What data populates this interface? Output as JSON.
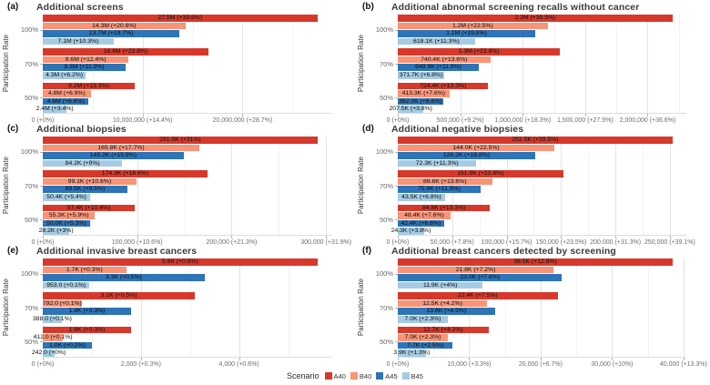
{
  "figure": {
    "y_axis_label": "Participation Rate",
    "participation_rates": [
      "100%",
      "70%",
      "50%"
    ],
    "legend": {
      "title": "Scenario",
      "items": [
        {
          "label": "A40",
          "color": "#d6392b"
        },
        {
          "label": "B40",
          "color": "#fa9476"
        },
        {
          "label": "A45",
          "color": "#2e74b6"
        },
        {
          "label": "B45",
          "color": "#a7cbe2"
        }
      ]
    },
    "colors": {
      "grid_major": "#e4e4e4",
      "grid_minor": "#f2f2f2",
      "axis_text": "#6e6e6e",
      "title_text": "#3d3d3d",
      "bar_label_text": "#0d0d0d"
    }
  },
  "chart_data": [
    {
      "type": "bar",
      "orientation": "horizontal",
      "panel_letter": "(a)",
      "title": "Additional screens",
      "ylabel": "Participation Rate",
      "x_max": 28900000,
      "x_ticks": [
        {
          "value": 0,
          "label": "0 (+0%)"
        },
        {
          "value": 10000000,
          "label": "10,000,000 (+14.4%)"
        },
        {
          "value": 20000000,
          "label": "20,000,000 (+28.7%)"
        }
      ],
      "groups": [
        {
          "rate": "100%",
          "bars": [
            {
              "scenario": "A40",
              "value": 27500000,
              "label": "27.5M (+39.6%)"
            },
            {
              "scenario": "B40",
              "value": 14300000,
              "label": "14.3M (+20.6%)"
            },
            {
              "scenario": "A45",
              "value": 13700000,
              "label": "13.7M (+19.7%)"
            },
            {
              "scenario": "B45",
              "value": 7100000,
              "label": "7.1M (+10.3%)"
            }
          ]
        },
        {
          "rate": "70%",
          "bars": [
            {
              "scenario": "A40",
              "value": 16600000,
              "label": "16.6M (+23.8%)"
            },
            {
              "scenario": "B40",
              "value": 8600000,
              "label": "8.6M (+12.4%)"
            },
            {
              "scenario": "A45",
              "value": 8300000,
              "label": "8.3M (+11.9%)"
            },
            {
              "scenario": "B45",
              "value": 4300000,
              "label": "4.3M (+6.2%)"
            }
          ]
        },
        {
          "rate": "50%",
          "bars": [
            {
              "scenario": "A40",
              "value": 9200000,
              "label": "9.2M (+13.3%)"
            },
            {
              "scenario": "B40",
              "value": 4800000,
              "label": "4.8M (+6.9%)"
            },
            {
              "scenario": "A45",
              "value": 4600000,
              "label": "4.6M (+6.6%)"
            },
            {
              "scenario": "B45",
              "value": 2400000,
              "label": "2.4M (+3.4%)"
            }
          ]
        }
      ]
    },
    {
      "type": "bar",
      "orientation": "horizontal",
      "panel_letter": "(b)",
      "title": "Additional abnormal screening recalls without cancer",
      "ylabel": "Participation Rate",
      "x_max": 2310000,
      "x_ticks": [
        {
          "value": 0,
          "label": "0 (+0%)"
        },
        {
          "value": 500000,
          "label": "500,000 (+9.2%)"
        },
        {
          "value": 1000000,
          "label": "1,000,000 (+18.3%)"
        },
        {
          "value": 1500000,
          "label": "1,500,000 (+27.5%)"
        },
        {
          "value": 2000000,
          "label": "2,000,000 (+36.6%)"
        }
      ],
      "groups": [
        {
          "rate": "100%",
          "bars": [
            {
              "scenario": "A40",
              "value": 2200000,
              "label": "2.2M (+39.5%)"
            },
            {
              "scenario": "B40",
              "value": 1200000,
              "label": "1.2M (+22.5%)"
            },
            {
              "scenario": "A45",
              "value": 1100000,
              "label": "1.1M (+19.8%)"
            },
            {
              "scenario": "B45",
              "value": 618100,
              "label": "618.1K (+11.3%)"
            }
          ]
        },
        {
          "rate": "70%",
          "bars": [
            {
              "scenario": "A40",
              "value": 1300000,
              "label": "1.3M (+23.8%)"
            },
            {
              "scenario": "B40",
              "value": 740400,
              "label": "740.4K (+13.6%)"
            },
            {
              "scenario": "A45",
              "value": 648900,
              "label": "648.9K (+11.9%)"
            },
            {
              "scenario": "B45",
              "value": 371700,
              "label": "371.7K (+6.8%)"
            }
          ]
        },
        {
          "rate": "50%",
          "bars": [
            {
              "scenario": "A40",
              "value": 724400,
              "label": "724.4K (+13.3%)"
            },
            {
              "scenario": "B40",
              "value": 413300,
              "label": "413.3K (+7.6%)"
            },
            {
              "scenario": "A45",
              "value": 362000,
              "label": "362.0K (+6.6%)"
            },
            {
              "scenario": "B45",
              "value": 207500,
              "label": "207.5K (+3.8%)"
            }
          ]
        }
      ]
    },
    {
      "type": "bar",
      "orientation": "horizontal",
      "panel_letter": "(c)",
      "title": "Additional biopsies",
      "ylabel": "Participation Rate",
      "x_max": 305600,
      "x_ticks": [
        {
          "value": 0,
          "label": "0 (+0%)"
        },
        {
          "value": 100000,
          "label": "100,000 (+10.6%)"
        },
        {
          "value": 200000,
          "label": "200,000 (+21.3%)"
        },
        {
          "value": 300000,
          "label": "300,000 (+31.9%)"
        }
      ],
      "groups": [
        {
          "rate": "100%",
          "bars": [
            {
              "scenario": "A40",
              "value": 291000,
              "label": "291.0K (+31%)"
            },
            {
              "scenario": "B40",
              "value": 165800,
              "label": "165.8K (+17.7%)"
            },
            {
              "scenario": "A45",
              "value": 149200,
              "label": "149.2K (+15.9%)"
            },
            {
              "scenario": "B45",
              "value": 84200,
              "label": "84.2K (+9%)"
            }
          ]
        },
        {
          "rate": "70%",
          "bars": [
            {
              "scenario": "A40",
              "value": 174300,
              "label": "174.3K (+18.6%)"
            },
            {
              "scenario": "B40",
              "value": 99100,
              "label": "99.1K (+10.6%)"
            },
            {
              "scenario": "A45",
              "value": 89500,
              "label": "89.5K (+9.5%)"
            },
            {
              "scenario": "B45",
              "value": 50400,
              "label": "50.4K (+5.4%)"
            }
          ]
        },
        {
          "rate": "50%",
          "bars": [
            {
              "scenario": "A40",
              "value": 97400,
              "label": "97.4K (+10.4%)"
            },
            {
              "scenario": "B40",
              "value": 55300,
              "label": "55.3K (+5.9%)"
            },
            {
              "scenario": "A45",
              "value": 50000,
              "label": "50.0K (+5.3%)"
            },
            {
              "scenario": "B45",
              "value": 28200,
              "label": "28.2K (+3%)"
            }
          ]
        }
      ]
    },
    {
      "type": "bar",
      "orientation": "horizontal",
      "panel_letter": "(d)",
      "title": "Additional negative biopsies",
      "ylabel": "Participation Rate",
      "x_max": 265100,
      "x_ticks": [
        {
          "value": 0,
          "label": "0 (+0%)"
        },
        {
          "value": 50000,
          "label": "50,000 (+7.8%)"
        },
        {
          "value": 100000,
          "label": "100,000 (+15.7%)"
        },
        {
          "value": 150000,
          "label": "150,000 (+23.5%)"
        },
        {
          "value": 200000,
          "label": "200,000 (+31.3%)"
        },
        {
          "value": 250000,
          "label": "250,000 (+39.1%)"
        }
      ],
      "groups": [
        {
          "rate": "100%",
          "bars": [
            {
              "scenario": "A40",
              "value": 252500,
              "label": "252.5K (+39.5%)"
            },
            {
              "scenario": "B40",
              "value": 144000,
              "label": "144.0K (+22.5%)"
            },
            {
              "scenario": "A45",
              "value": 126200,
              "label": "126.2K (+19.8%)"
            },
            {
              "scenario": "B45",
              "value": 72300,
              "label": "72.3K (+11.3%)"
            }
          ]
        },
        {
          "rate": "70%",
          "bars": [
            {
              "scenario": "A40",
              "value": 151900,
              "label": "151.9K (+23.8%)"
            },
            {
              "scenario": "B40",
              "value": 86600,
              "label": "86.6K (+13.6%)"
            },
            {
              "scenario": "A45",
              "value": 75900,
              "label": "75.9K (+11.9%)"
            },
            {
              "scenario": "B45",
              "value": 43500,
              "label": "43.5K (+6.8%)"
            }
          ]
        },
        {
          "rate": "50%",
          "bars": [
            {
              "scenario": "A40",
              "value": 84800,
              "label": "84.8K (+13.3%)"
            },
            {
              "scenario": "B40",
              "value": 48400,
              "label": "48.4K (+7.6%)"
            },
            {
              "scenario": "A45",
              "value": 42400,
              "label": "42.4K (+6.6%)"
            },
            {
              "scenario": "B45",
              "value": 24300,
              "label": "24.3K (+3.8%)"
            }
          ]
        }
      ]
    },
    {
      "type": "bar",
      "orientation": "horizontal",
      "panel_letter": "(e)",
      "title": "Additional invasive breast cancers",
      "ylabel": "Participation Rate",
      "x_max": 5880,
      "x_ticks": [
        {
          "value": 0,
          "label": "0 (+0%)"
        },
        {
          "value": 2000,
          "label": "2,000 (+0.3%)"
        },
        {
          "value": 4000,
          "label": "4,000 (+0.6%)"
        }
      ],
      "groups": [
        {
          "rate": "100%",
          "bars": [
            {
              "scenario": "A40",
              "value": 5600,
              "label": "5.6K (+0.8%)"
            },
            {
              "scenario": "B40",
              "value": 1700,
              "label": "1.7K (+0.3%)"
            },
            {
              "scenario": "A45",
              "value": 3300,
              "label": "3.3K (+0.5%)"
            },
            {
              "scenario": "B45",
              "value": 953,
              "label": "953.0 (+0.1%)"
            }
          ]
        },
        {
          "rate": "70%",
          "bars": [
            {
              "scenario": "A40",
              "value": 3100,
              "label": "3.1K (+0.5%)"
            },
            {
              "scenario": "B40",
              "value": 792,
              "label": "792.0 (+0.1%)"
            },
            {
              "scenario": "A45",
              "value": 1800,
              "label": "1.8K (+0.3%)"
            },
            {
              "scenario": "B45",
              "value": 388,
              "label": "388.0 (+0.1%)"
            }
          ]
        },
        {
          "rate": "50%",
          "bars": [
            {
              "scenario": "A40",
              "value": 1800,
              "label": "1.8K (+0.3%)"
            },
            {
              "scenario": "B40",
              "value": 412,
              "label": "412.0 (+0.1%)"
            },
            {
              "scenario": "A45",
              "value": 1000,
              "label": "1.0K (+0.2%)"
            },
            {
              "scenario": "B45",
              "value": 242,
              "label": "242.0 (+0%)"
            }
          ]
        }
      ]
    },
    {
      "type": "bar",
      "orientation": "horizontal",
      "panel_letter": "(f)",
      "title": "Additional breast cancers detected by screening",
      "ylabel": "Participation Rate",
      "x_max": 40400,
      "x_ticks": [
        {
          "value": 0,
          "label": "0 (+0%)"
        },
        {
          "value": 10000,
          "label": "10,000 (+3.3%)"
        },
        {
          "value": 20000,
          "label": "20,000 (+6.7%)"
        },
        {
          "value": 30000,
          "label": "30,000 (+10%)"
        },
        {
          "value": 40000,
          "label": "40,000 (+13.3%)"
        }
      ],
      "groups": [
        {
          "rate": "100%",
          "bars": [
            {
              "scenario": "A40",
              "value": 38500,
              "label": "38.5K (+12.8%)"
            },
            {
              "scenario": "B40",
              "value": 21800,
              "label": "21.8K (+7.2%)"
            },
            {
              "scenario": "A45",
              "value": 23000,
              "label": "23.0K (+7.6%)"
            },
            {
              "scenario": "B45",
              "value": 11900,
              "label": "11.9K (+4%)"
            }
          ]
        },
        {
          "rate": "70%",
          "bars": [
            {
              "scenario": "A40",
              "value": 22400,
              "label": "22.4K (+7.5%)"
            },
            {
              "scenario": "B40",
              "value": 12500,
              "label": "12.5K (+4.2%)"
            },
            {
              "scenario": "A45",
              "value": 13600,
              "label": "13.6K (+4.5%)"
            },
            {
              "scenario": "B45",
              "value": 7000,
              "label": "7.0K (+2.3%)"
            }
          ]
        },
        {
          "rate": "50%",
          "bars": [
            {
              "scenario": "A40",
              "value": 12700,
              "label": "12.7K (+4.2%)"
            },
            {
              "scenario": "B40",
              "value": 7000,
              "label": "7.0K (+2.3%)"
            },
            {
              "scenario": "A45",
              "value": 7700,
              "label": "7.7K (+2.5%)"
            },
            {
              "scenario": "B45",
              "value": 3900,
              "label": "3.9K (+1.3%)"
            }
          ]
        }
      ]
    }
  ]
}
